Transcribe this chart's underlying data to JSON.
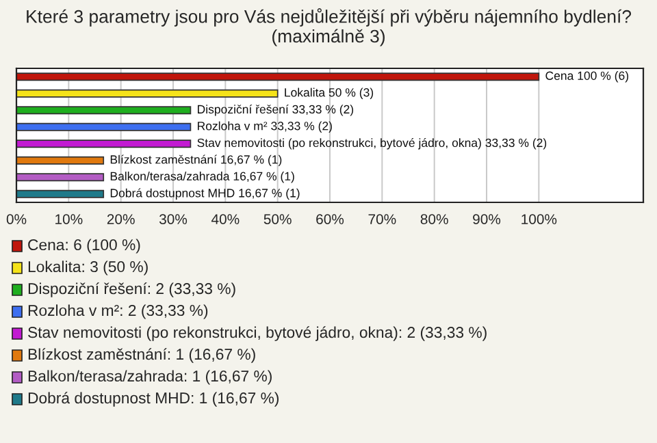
{
  "chart_data": {
    "type": "bar",
    "orientation": "horizontal",
    "title": "Které 3 parametry jsou pro Vás nejdůležitější při výběru nájemního bydlení? (maximálně 3)",
    "categories": [
      "Cena",
      "Lokalita",
      "Dispoziční řešení",
      "Rozloha v m²",
      "Stav nemovitosti (po rekonstrukci, bytové jádro, okna)",
      "Blízkost zaměstnání",
      "Balkon/terasa/zahrada",
      "Dobrá dostupnost MHD"
    ],
    "values": [
      100,
      50,
      33.33,
      33.33,
      33.33,
      16.67,
      16.67,
      16.67
    ],
    "value_labels": [
      "100 % (6)",
      "50 % (3)",
      "33,33 % (2)",
      "33,33 % (2)",
      "33,33 % (2)",
      "16,67 % (1)",
      "16,67 % (1)",
      "16,67 % (1)"
    ],
    "colors": [
      "#c0160c",
      "#f5e31a",
      "#1fae1f",
      "#3e6ff0",
      "#c21bd2",
      "#e0790f",
      "#b35cc4",
      "#1f7a8a"
    ],
    "xlim": [
      0,
      120
    ],
    "xticks": [
      {
        "value": 0,
        "label": "0%"
      },
      {
        "value": 10,
        "label": "10%"
      },
      {
        "value": 20,
        "label": "20%"
      },
      {
        "value": 30,
        "label": "30%"
      },
      {
        "value": 40,
        "label": "40%"
      },
      {
        "value": 50,
        "label": "50%"
      },
      {
        "value": 60,
        "label": "60%"
      },
      {
        "value": 70,
        "label": "70%"
      },
      {
        "value": 80,
        "label": "80%"
      },
      {
        "value": 90,
        "label": "90%"
      },
      {
        "value": 100,
        "label": "100%"
      }
    ],
    "tick_labels": "x",
    "grid": "x",
    "annotations": [
      "Cena: 6 (100 %)",
      "Lokalita: 3 (50 %)",
      "Dispoziční řešení: 2 (33,33 %)",
      "Rozloha v m²: 2 (33,33 %)",
      "Stav nemovitosti (po rekonstrukci, bytové jádro, okna): 2 (33,33 %)",
      "Blízkost zaměstnání: 1 (16,67 %)",
      "Balkon/terasa/zahrada: 1 (16,67 %)",
      "Dobrá dostupnost MHD: 1 (16,67 %)"
    ]
  }
}
